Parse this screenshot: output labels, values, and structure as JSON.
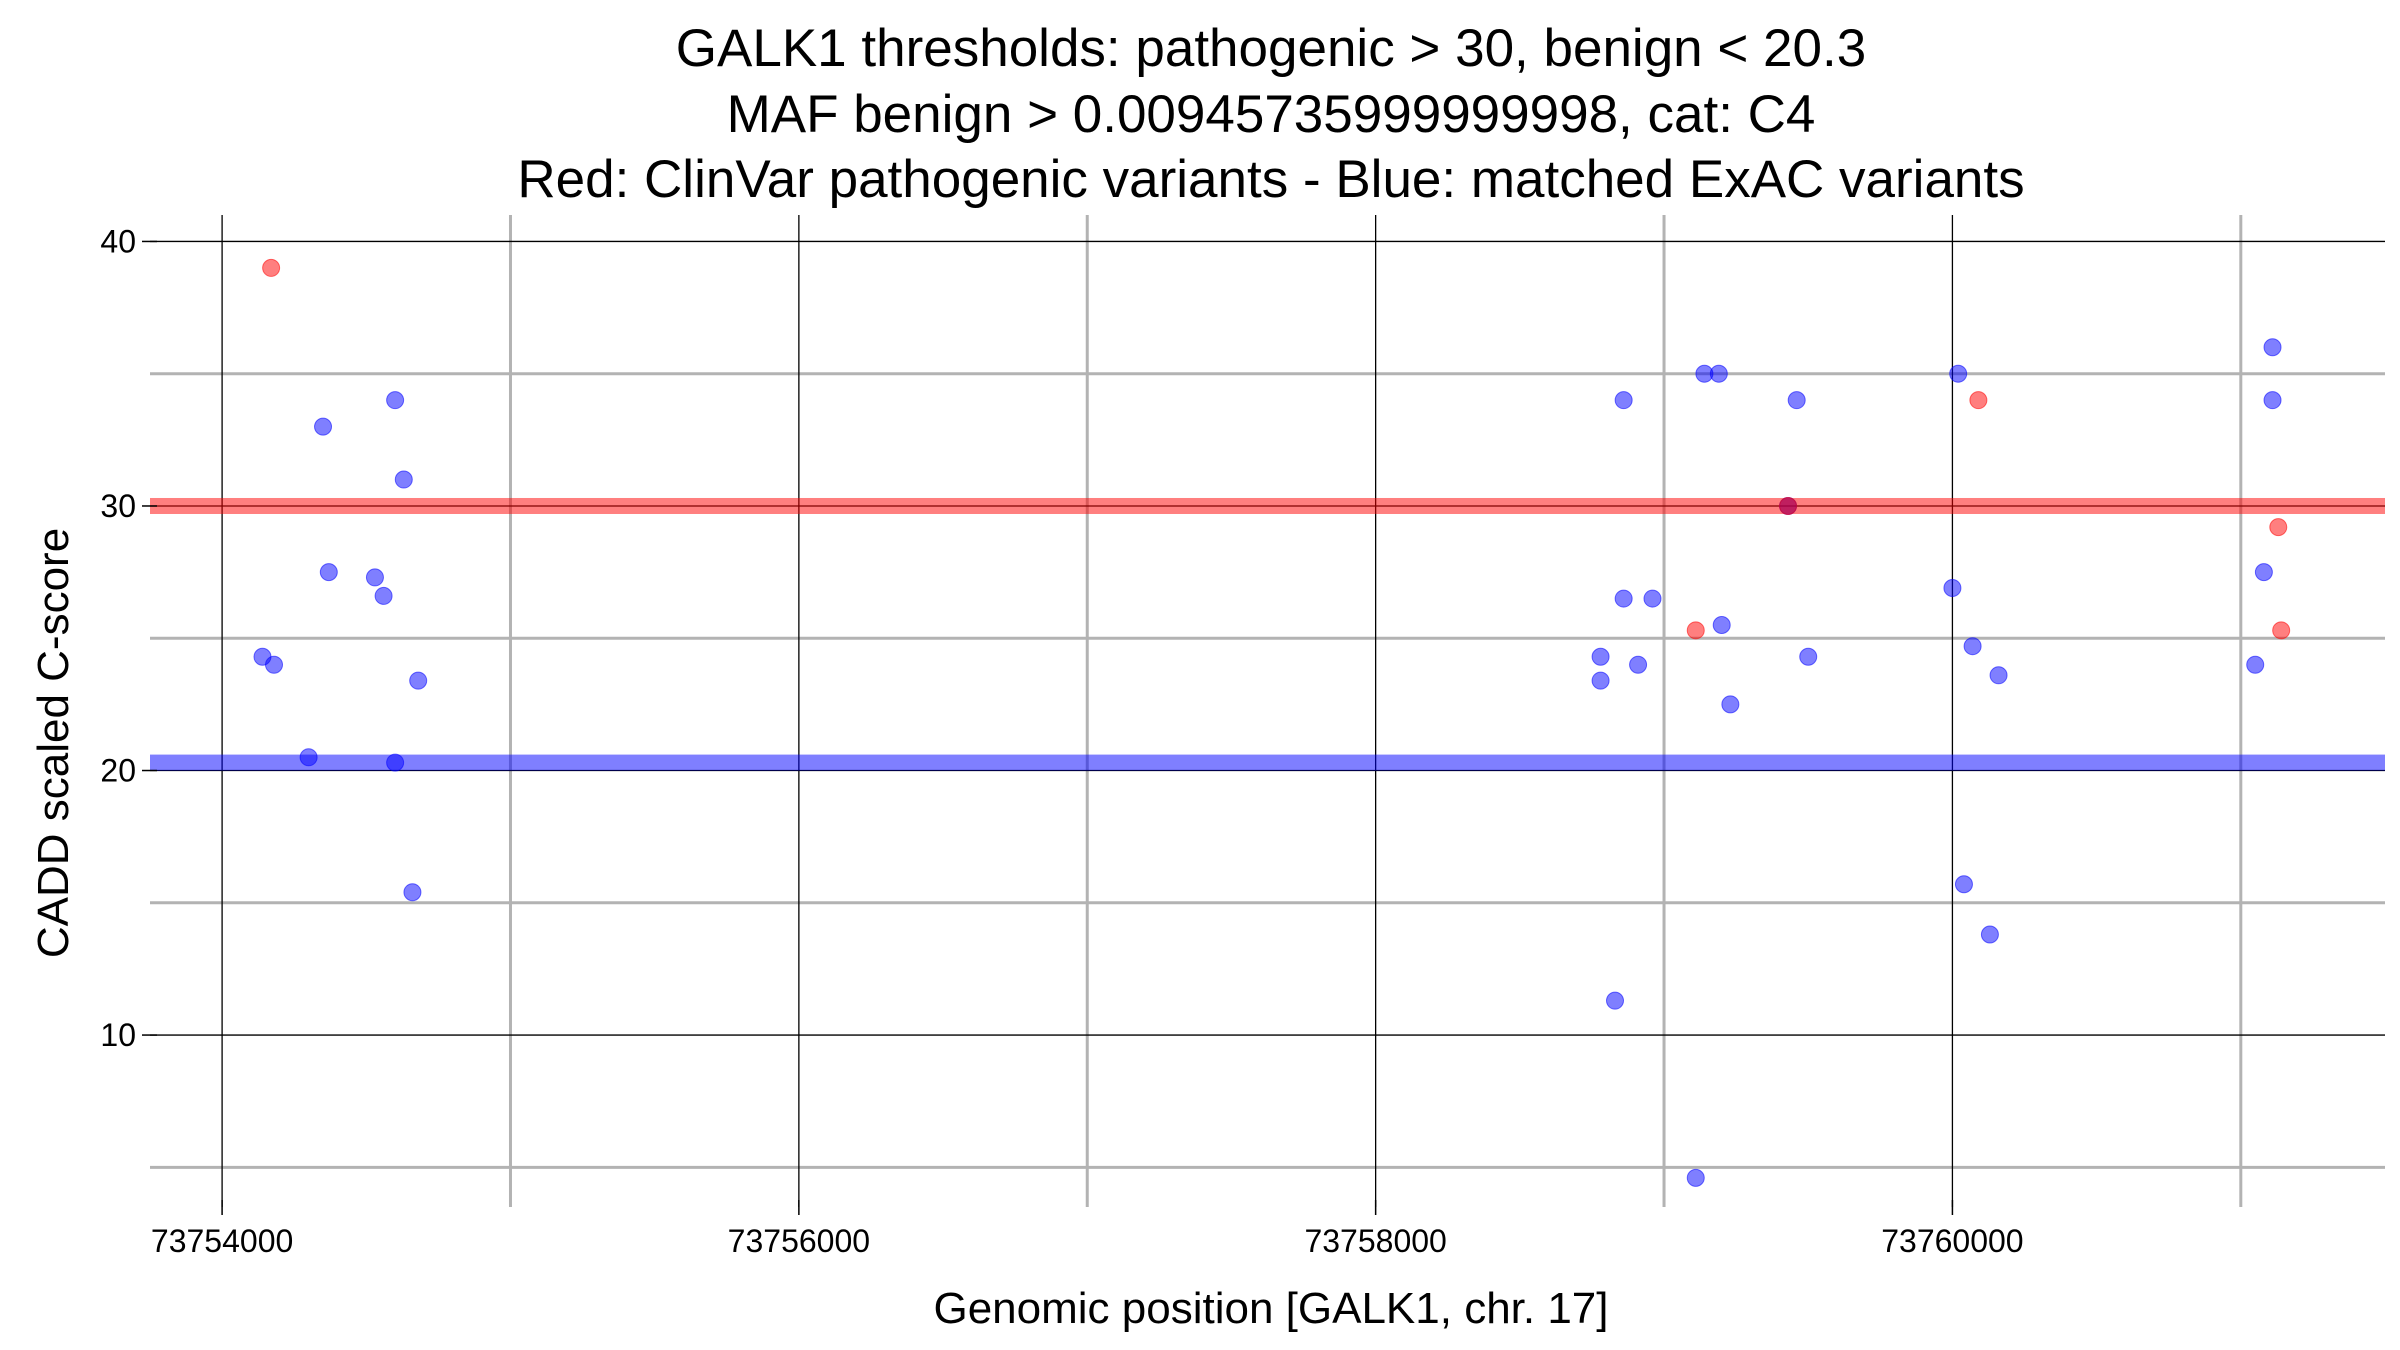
{
  "chart_data": {
    "type": "scatter",
    "title": [
      "GALK1 thresholds: pathogenic > 30, benign < 20.3",
      "MAF benign > 0.00945735999999998, cat: C4",
      "Red: ClinVar pathogenic variants - Blue: matched ExAC variants"
    ],
    "xlabel": "Genomic position [GALK1, chr. 17]",
    "ylabel": "CADD scaled C-score",
    "xlim": [
      73753750,
      73761500
    ],
    "ylim": [
      3.5,
      41
    ],
    "x_ticks": [
      73754000,
      73756000,
      73758000,
      73760000
    ],
    "x_tick_labels": [
      "73754000",
      "73756000",
      "73758000",
      "73760000"
    ],
    "x_minor_gridlines": [
      73755000,
      73757000,
      73759000,
      73761000
    ],
    "y_ticks": [
      10,
      20,
      30,
      40
    ],
    "y_tick_labels": [
      "10",
      "20",
      "30",
      "40"
    ],
    "y_minor_gridlines": [
      5,
      15,
      25,
      35
    ],
    "thresholds": [
      {
        "name": "pathogenic",
        "value": 30,
        "color": "#ff0000"
      },
      {
        "name": "benign",
        "value": 20.3,
        "color": "#0000ff"
      }
    ],
    "series": [
      {
        "name": "ClinVar pathogenic",
        "color": "#ff0000",
        "points": [
          {
            "x": 73754170,
            "y": 39
          },
          {
            "x": 73759110,
            "y": 25.3
          },
          {
            "x": 73759430,
            "y": 30
          },
          {
            "x": 73760090,
            "y": 34
          },
          {
            "x": 73761130,
            "y": 29.2
          },
          {
            "x": 73761140,
            "y": 25.3
          }
        ]
      },
      {
        "name": "matched ExAC",
        "color": "#0000ff",
        "points": [
          {
            "x": 73754140,
            "y": 24.3
          },
          {
            "x": 73754180,
            "y": 24
          },
          {
            "x": 73754300,
            "y": 20.5
          },
          {
            "x": 73754350,
            "y": 33
          },
          {
            "x": 73754370,
            "y": 27.5
          },
          {
            "x": 73754530,
            "y": 27.3
          },
          {
            "x": 73754560,
            "y": 26.6
          },
          {
            "x": 73754600,
            "y": 34
          },
          {
            "x": 73754600,
            "y": 20.3
          },
          {
            "x": 73754630,
            "y": 31
          },
          {
            "x": 73754660,
            "y": 15.4
          },
          {
            "x": 73754680,
            "y": 23.4
          },
          {
            "x": 73758780,
            "y": 24.3
          },
          {
            "x": 73758780,
            "y": 23.4
          },
          {
            "x": 73758830,
            "y": 11.3
          },
          {
            "x": 73758860,
            "y": 34
          },
          {
            "x": 73758860,
            "y": 26.5
          },
          {
            "x": 73758910,
            "y": 24
          },
          {
            "x": 73758960,
            "y": 26.5
          },
          {
            "x": 73759110,
            "y": 4.6
          },
          {
            "x": 73759140,
            "y": 35
          },
          {
            "x": 73759190,
            "y": 35
          },
          {
            "x": 73759200,
            "y": 25.5
          },
          {
            "x": 73759230,
            "y": 22.5
          },
          {
            "x": 73759460,
            "y": 34
          },
          {
            "x": 73759500,
            "y": 24.3
          },
          {
            "x": 73759430,
            "y": 30
          },
          {
            "x": 73760000,
            "y": 26.9
          },
          {
            "x": 73760020,
            "y": 35
          },
          {
            "x": 73760040,
            "y": 15.7
          },
          {
            "x": 73760070,
            "y": 24.7
          },
          {
            "x": 73760130,
            "y": 13.8
          },
          {
            "x": 73760160,
            "y": 23.6
          },
          {
            "x": 73761050,
            "y": 24
          },
          {
            "x": 73761080,
            "y": 27.5
          },
          {
            "x": 73761110,
            "y": 36
          },
          {
            "x": 73761110,
            "y": 34
          }
        ]
      }
    ]
  }
}
